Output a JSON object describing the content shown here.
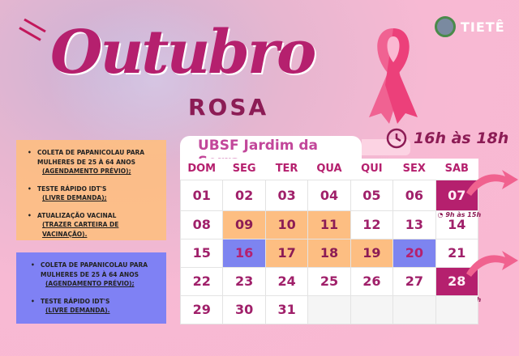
{
  "header": {
    "title": "Outubro",
    "subtitle": "ROSA",
    "logo_text": "TIETÊ"
  },
  "ubsf": "UBSF Jardim da Serra",
  "hours": "16h às 18h",
  "box1": [
    {
      "text": "COLETA DE PAPANICOLAU PARA MULHERES DE 25 À 64 ANOS",
      "note": "(AGENDAMENTO PRÉVIO);"
    },
    {
      "text": "TESTE RÁPIDO IDT'S",
      "note": "(LIVRE DEMANDA);"
    },
    {
      "text": "ATUALIZAÇÃO VACINAL",
      "note": "(TRAZER CARTEIRA DE VACINAÇÃO)."
    }
  ],
  "box2": [
    {
      "text": "COLETA DE PAPANICOLAU PARA MULHERES DE 25 À 64 ANOS",
      "note": "(AGENDAMENTO PRÉVIO);"
    },
    {
      "text": "TESTE RÁPIDO IDT'S",
      "note": "(LIVRE DEMANDA)."
    }
  ],
  "weekdays": [
    "DOM",
    "SEG",
    "TER",
    "QUA",
    "QUI",
    "SEX",
    "SAB"
  ],
  "weeks": [
    [
      "01",
      "02",
      "03",
      "04",
      "05",
      "06",
      "07"
    ],
    [
      "08",
      "09",
      "10",
      "11",
      "12",
      "13",
      "14"
    ],
    [
      "15",
      "16",
      "17",
      "18",
      "19",
      "20",
      "21"
    ],
    [
      "22",
      "23",
      "24",
      "25",
      "26",
      "27",
      "28"
    ],
    [
      "29",
      "30",
      "31",
      "",
      "",
      "",
      ""
    ]
  ],
  "highlights": {
    "orange": [
      "09",
      "10",
      "11",
      "17",
      "18",
      "19"
    ],
    "blue": [
      "16",
      "20"
    ],
    "magenta": [
      "07",
      "28"
    ]
  },
  "saturday_hours": "9h às 15h",
  "colors": {
    "magenta": "#b5206e",
    "orange": "#fdbe82",
    "blue": "#7d84f0",
    "pink": "#fbb8d2"
  }
}
